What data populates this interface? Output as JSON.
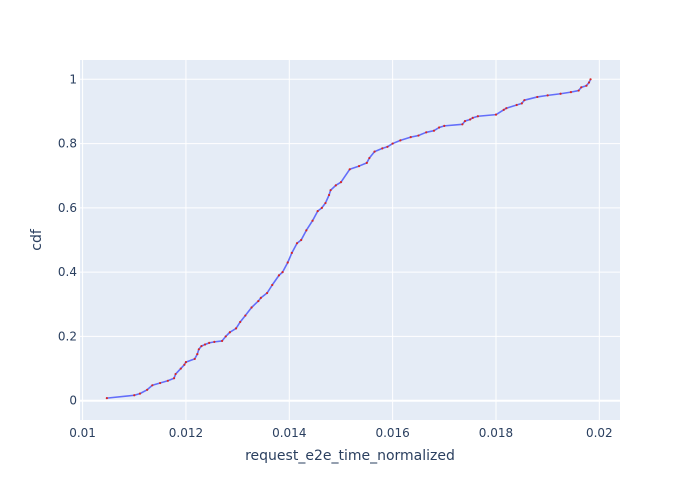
{
  "chart_data": {
    "type": "line",
    "title": "",
    "xlabel": "request_e2e_time_normalized",
    "ylabel": "cdf",
    "xlim": [
      0.00995,
      0.0204
    ],
    "ylim": [
      -0.06,
      1.06
    ],
    "xticks": [
      0.01,
      0.012,
      0.014,
      0.016,
      0.018,
      0.02
    ],
    "xtick_labels": [
      "0.01",
      "0.012",
      "0.014",
      "0.016",
      "0.018",
      "0.02"
    ],
    "yticks": [
      0,
      0.2,
      0.4,
      0.6,
      0.8,
      1
    ],
    "ytick_labels": [
      "0",
      "0.2",
      "0.4",
      "0.6",
      "0.8",
      "1"
    ],
    "grid": true,
    "legend": "none",
    "colors": {
      "plot_background": "#E5ECF6",
      "grid": "#ffffff",
      "line": "#636EFA",
      "markers": "#D62728",
      "text": "#2a3f5f"
    },
    "series": [
      {
        "x": [
          0.01047,
          0.011,
          0.01111,
          0.01125,
          0.01135,
          0.0115,
          0.01165,
          0.01177,
          0.0118,
          0.0119,
          0.01197,
          0.012,
          0.01217,
          0.01222,
          0.01225,
          0.0123,
          0.01237,
          0.01245,
          0.01255,
          0.0127,
          0.01277,
          0.01285,
          0.01297,
          0.01305,
          0.01315,
          0.01327,
          0.0134,
          0.01345,
          0.01357,
          0.01367,
          0.0138,
          0.01387,
          0.01397,
          0.01405,
          0.01415,
          0.01423,
          0.01433,
          0.01445,
          0.01455,
          0.01463,
          0.0147,
          0.01477,
          0.0148,
          0.0149,
          0.015,
          0.01517,
          0.01535,
          0.0155,
          0.01555,
          0.01565,
          0.0158,
          0.0159,
          0.016,
          0.01615,
          0.01635,
          0.0165,
          0.01665,
          0.0168,
          0.0169,
          0.017,
          0.01735,
          0.0174,
          0.0175,
          0.01755,
          0.01765,
          0.018,
          0.01815,
          0.0182,
          0.0184,
          0.0185,
          0.01855,
          0.0188,
          0.019,
          0.01925,
          0.01945,
          0.0196,
          0.01965,
          0.01975,
          0.0198,
          0.01983
        ],
        "y": [
          0.008,
          0.017,
          0.022,
          0.034,
          0.048,
          0.055,
          0.062,
          0.07,
          0.083,
          0.1,
          0.112,
          0.12,
          0.13,
          0.145,
          0.16,
          0.17,
          0.175,
          0.18,
          0.183,
          0.186,
          0.2,
          0.213,
          0.225,
          0.245,
          0.265,
          0.29,
          0.31,
          0.32,
          0.335,
          0.36,
          0.39,
          0.4,
          0.43,
          0.46,
          0.49,
          0.5,
          0.53,
          0.56,
          0.59,
          0.6,
          0.615,
          0.64,
          0.655,
          0.67,
          0.68,
          0.72,
          0.73,
          0.74,
          0.755,
          0.775,
          0.785,
          0.79,
          0.8,
          0.81,
          0.82,
          0.825,
          0.835,
          0.84,
          0.85,
          0.855,
          0.86,
          0.87,
          0.875,
          0.88,
          0.885,
          0.89,
          0.905,
          0.91,
          0.92,
          0.925,
          0.935,
          0.945,
          0.95,
          0.955,
          0.96,
          0.965,
          0.975,
          0.98,
          0.99,
          1.0
        ]
      }
    ]
  }
}
